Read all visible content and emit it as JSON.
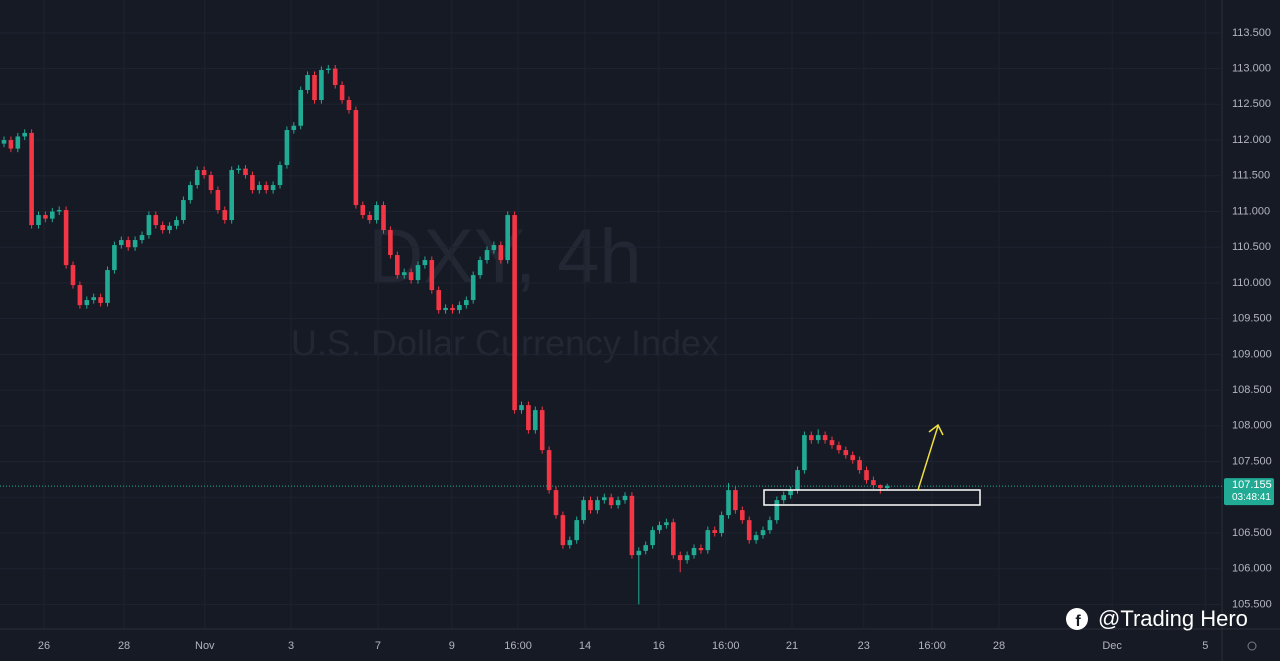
{
  "chart_data": {
    "type": "candlestick",
    "title": "DXY, 4h",
    "subtitle": "U.S. Dollar Currency Index",
    "up_color": "#22ab94",
    "down_color": "#f23645",
    "grid": true,
    "xlim": [
      -0.58,
      176.52
    ],
    "ylim": [
      105.17,
      113.96
    ],
    "xticks": [
      {
        "value": 5.8,
        "label": "26"
      },
      {
        "value": 17.4,
        "label": "28"
      },
      {
        "value": 29.1,
        "label": "Nov"
      },
      {
        "value": 41.6,
        "label": "3"
      },
      {
        "value": 54.2,
        "label": "7"
      },
      {
        "value": 64.9,
        "label": "9"
      },
      {
        "value": 74.5,
        "label": "16:00"
      },
      {
        "value": 84.2,
        "label": "14"
      },
      {
        "value": 94.9,
        "label": "16"
      },
      {
        "value": 104.6,
        "label": "16:00"
      },
      {
        "value": 114.2,
        "label": "21"
      },
      {
        "value": 124.6,
        "label": "23"
      },
      {
        "value": 134.5,
        "label": "16:00"
      },
      {
        "value": 144.2,
        "label": "28"
      },
      {
        "value": 160.6,
        "label": "Dec"
      },
      {
        "value": 174.1,
        "label": "5"
      }
    ],
    "yticks": [
      {
        "value": 105.5,
        "label": "105.500"
      },
      {
        "value": 106,
        "label": "106.000"
      },
      {
        "value": 106.5,
        "label": "106.500"
      },
      {
        "value": 107,
        "label": "107.000"
      },
      {
        "value": 107.5,
        "label": "107.500"
      },
      {
        "value": 108,
        "label": "108.000"
      },
      {
        "value": 108.5,
        "label": "108.500"
      },
      {
        "value": 109,
        "label": "109.000"
      },
      {
        "value": 109.5,
        "label": "109.500"
      },
      {
        "value": 110,
        "label": "110.000"
      },
      {
        "value": 110.5,
        "label": "110.500"
      },
      {
        "value": 111,
        "label": "111.000"
      },
      {
        "value": 111.5,
        "label": "111.500"
      },
      {
        "value": 112,
        "label": "112.000"
      },
      {
        "value": 112.5,
        "label": "112.500"
      },
      {
        "value": 113,
        "label": "113.000"
      },
      {
        "value": 113.5,
        "label": "113.500"
      }
    ],
    "current_price": 107.155,
    "countdown": "03:48:41",
    "x": [
      0,
      1,
      2,
      3,
      4,
      5,
      6,
      7,
      8,
      9,
      10,
      11,
      12,
      13,
      14,
      15,
      16,
      17,
      18,
      19,
      20,
      21,
      22,
      23,
      24,
      25,
      26,
      27,
      28,
      29,
      30,
      31,
      32,
      33,
      34,
      35,
      36,
      37,
      38,
      39,
      40,
      41,
      42,
      43,
      44,
      45,
      46,
      47,
      48,
      49,
      50,
      51,
      52,
      53,
      54,
      55,
      56,
      57,
      58,
      59,
      60,
      61,
      62,
      63,
      64,
      65,
      66,
      67,
      68,
      69,
      70,
      71,
      72,
      73,
      74,
      75,
      76,
      77,
      78,
      79,
      80,
      81,
      82,
      83,
      84,
      85,
      86,
      87,
      88,
      89,
      90,
      91,
      92,
      93,
      94,
      95,
      96,
      97,
      98,
      99,
      100,
      101,
      102,
      103,
      104,
      105,
      106,
      107,
      108,
      109,
      110,
      111,
      112,
      113,
      114,
      115,
      116,
      117,
      118,
      119,
      120,
      121,
      122,
      123,
      124,
      125,
      126,
      127,
      128
    ],
    "candles": [
      [
        111.95,
        112.05,
        111.9,
        112.0
      ],
      [
        112.0,
        112.05,
        111.83,
        111.88
      ],
      [
        111.88,
        112.1,
        111.83,
        112.05
      ],
      [
        112.05,
        112.15,
        112.0,
        112.1
      ],
      [
        112.1,
        112.15,
        110.76,
        110.81
      ],
      [
        110.81,
        111.0,
        110.76,
        110.95
      ],
      [
        110.95,
        111.0,
        110.85,
        110.9
      ],
      [
        110.9,
        111.05,
        110.85,
        111.0
      ],
      [
        111.0,
        111.07,
        110.95,
        111.02
      ],
      [
        111.02,
        111.07,
        110.2,
        110.25
      ],
      [
        110.25,
        110.3,
        109.92,
        109.97
      ],
      [
        109.97,
        110.02,
        109.64,
        109.69
      ],
      [
        109.69,
        109.81,
        109.64,
        109.76
      ],
      [
        109.76,
        109.85,
        109.71,
        109.8
      ],
      [
        109.8,
        109.85,
        109.67,
        109.72
      ],
      [
        109.72,
        110.23,
        109.67,
        110.18
      ],
      [
        110.18,
        110.58,
        110.13,
        110.53
      ],
      [
        110.53,
        110.65,
        110.48,
        110.6
      ],
      [
        110.6,
        110.65,
        110.45,
        110.5
      ],
      [
        110.5,
        110.65,
        110.45,
        110.6
      ],
      [
        110.6,
        110.72,
        110.55,
        110.67
      ],
      [
        110.67,
        111.0,
        110.62,
        110.95
      ],
      [
        110.95,
        111.0,
        110.76,
        110.81
      ],
      [
        110.81,
        110.86,
        110.69,
        110.74
      ],
      [
        110.74,
        110.85,
        110.69,
        110.8
      ],
      [
        110.8,
        110.93,
        110.75,
        110.88
      ],
      [
        110.88,
        111.21,
        110.83,
        111.16
      ],
      [
        111.16,
        111.42,
        111.11,
        111.37
      ],
      [
        111.37,
        111.63,
        111.32,
        111.58
      ],
      [
        111.58,
        111.63,
        111.46,
        111.51
      ],
      [
        111.51,
        111.56,
        111.25,
        111.3
      ],
      [
        111.3,
        111.35,
        110.97,
        111.02
      ],
      [
        111.02,
        111.07,
        110.83,
        110.88
      ],
      [
        110.88,
        111.63,
        110.83,
        111.58
      ],
      [
        111.58,
        111.65,
        111.53,
        111.6
      ],
      [
        111.6,
        111.65,
        111.46,
        111.51
      ],
      [
        111.51,
        111.56,
        111.25,
        111.3
      ],
      [
        111.3,
        111.42,
        111.25,
        111.37
      ],
      [
        111.37,
        111.42,
        111.25,
        111.3
      ],
      [
        111.3,
        111.42,
        111.25,
        111.37
      ],
      [
        111.37,
        111.7,
        111.32,
        111.65
      ],
      [
        111.65,
        112.19,
        111.6,
        112.14
      ],
      [
        112.14,
        112.25,
        112.09,
        112.2
      ],
      [
        112.2,
        112.75,
        112.15,
        112.7
      ],
      [
        112.7,
        112.96,
        112.65,
        112.91
      ],
      [
        112.91,
        112.96,
        112.51,
        112.56
      ],
      [
        112.56,
        113.03,
        112.51,
        112.98
      ],
      [
        112.98,
        113.05,
        112.93,
        113.0
      ],
      [
        113.0,
        113.05,
        112.72,
        112.77
      ],
      [
        112.77,
        112.82,
        112.51,
        112.56
      ],
      [
        112.56,
        112.61,
        112.37,
        112.42
      ],
      [
        112.42,
        112.47,
        111.04,
        111.09
      ],
      [
        111.09,
        111.14,
        110.9,
        110.95
      ],
      [
        110.95,
        111.0,
        110.83,
        110.88
      ],
      [
        110.88,
        111.14,
        110.83,
        111.09
      ],
      [
        111.09,
        111.14,
        110.69,
        110.74
      ],
      [
        110.74,
        110.79,
        110.34,
        110.39
      ],
      [
        110.39,
        110.44,
        110.06,
        110.11
      ],
      [
        110.11,
        110.2,
        110.06,
        110.15
      ],
      [
        110.15,
        110.2,
        109.99,
        110.04
      ],
      [
        110.04,
        110.3,
        109.99,
        110.25
      ],
      [
        110.25,
        110.37,
        110.2,
        110.32
      ],
      [
        110.32,
        110.37,
        109.85,
        109.9
      ],
      [
        109.9,
        109.95,
        109.57,
        109.62
      ],
      [
        109.62,
        109.7,
        109.57,
        109.65
      ],
      [
        109.65,
        109.7,
        109.57,
        109.62
      ],
      [
        109.62,
        109.74,
        109.57,
        109.69
      ],
      [
        109.69,
        109.81,
        109.64,
        109.76
      ],
      [
        109.76,
        110.16,
        109.71,
        110.11
      ],
      [
        110.11,
        110.37,
        110.06,
        110.32
      ],
      [
        110.32,
        110.51,
        110.27,
        110.46
      ],
      [
        110.46,
        110.58,
        110.41,
        110.53
      ],
      [
        110.53,
        110.58,
        110.27,
        110.32
      ],
      [
        110.32,
        111.0,
        110.27,
        110.95
      ],
      [
        110.95,
        111.0,
        108.17,
        108.22
      ],
      [
        108.22,
        108.34,
        108.17,
        108.29
      ],
      [
        108.29,
        108.34,
        107.89,
        107.94
      ],
      [
        107.94,
        108.27,
        107.89,
        108.22
      ],
      [
        108.22,
        108.27,
        107.61,
        107.66
      ],
      [
        107.66,
        107.71,
        107.05,
        107.1
      ],
      [
        107.1,
        107.15,
        106.7,
        106.75
      ],
      [
        106.75,
        106.8,
        106.28,
        106.33
      ],
      [
        106.33,
        106.45,
        106.28,
        106.4
      ],
      [
        106.4,
        106.73,
        106.35,
        106.68
      ],
      [
        106.68,
        107.01,
        106.63,
        106.96
      ],
      [
        106.96,
        107.01,
        106.77,
        106.82
      ],
      [
        106.82,
        107.01,
        106.77,
        106.96
      ],
      [
        106.96,
        107.05,
        106.91,
        107.0
      ],
      [
        107.0,
        107.05,
        106.84,
        106.89
      ],
      [
        106.89,
        107.01,
        106.84,
        106.96
      ],
      [
        106.96,
        107.07,
        106.91,
        107.02
      ],
      [
        107.02,
        107.07,
        106.14,
        106.19
      ],
      [
        106.19,
        106.3,
        105.5,
        106.25
      ],
      [
        106.25,
        106.38,
        106.2,
        106.33
      ],
      [
        106.33,
        106.59,
        106.28,
        106.54
      ],
      [
        106.54,
        106.66,
        106.49,
        106.61
      ],
      [
        106.61,
        106.7,
        106.56,
        106.65
      ],
      [
        106.65,
        106.7,
        106.14,
        106.19
      ],
      [
        106.19,
        106.24,
        105.95,
        106.12
      ],
      [
        106.12,
        106.24,
        106.07,
        106.19
      ],
      [
        106.19,
        106.34,
        106.14,
        106.29
      ],
      [
        106.29,
        106.34,
        106.21,
        106.26
      ],
      [
        106.26,
        106.59,
        106.21,
        106.54
      ],
      [
        106.54,
        106.59,
        106.45,
        106.5
      ],
      [
        106.5,
        106.8,
        106.45,
        106.75
      ],
      [
        106.75,
        107.2,
        106.7,
        107.1
      ],
      [
        107.1,
        107.15,
        106.77,
        106.82
      ],
      [
        106.82,
        106.87,
        106.63,
        106.68
      ],
      [
        106.68,
        106.73,
        106.35,
        106.4
      ],
      [
        106.4,
        106.52,
        106.35,
        106.47
      ],
      [
        106.47,
        106.59,
        106.42,
        106.54
      ],
      [
        106.54,
        106.73,
        106.49,
        106.68
      ],
      [
        106.68,
        107.01,
        106.63,
        106.96
      ],
      [
        106.96,
        107.08,
        106.91,
        107.03
      ],
      [
        107.03,
        107.15,
        106.98,
        107.1
      ],
      [
        107.1,
        107.43,
        107.05,
        107.38
      ],
      [
        107.38,
        107.92,
        107.33,
        107.87
      ],
      [
        107.87,
        107.92,
        107.75,
        107.8
      ],
      [
        107.8,
        107.95,
        107.75,
        107.87
      ],
      [
        107.87,
        107.92,
        107.75,
        107.8
      ],
      [
        107.8,
        107.85,
        107.68,
        107.73
      ],
      [
        107.73,
        107.78,
        107.61,
        107.66
      ],
      [
        107.66,
        107.71,
        107.54,
        107.59
      ],
      [
        107.59,
        107.64,
        107.47,
        107.52
      ],
      [
        107.52,
        107.57,
        107.33,
        107.38
      ],
      [
        107.38,
        107.43,
        107.19,
        107.24
      ],
      [
        107.24,
        107.29,
        107.12,
        107.17
      ],
      [
        107.17,
        107.18,
        107.05,
        107.13
      ],
      [
        107.13,
        107.19,
        107.1,
        107.16
      ]
    ]
  },
  "credit": "@Trading Hero"
}
